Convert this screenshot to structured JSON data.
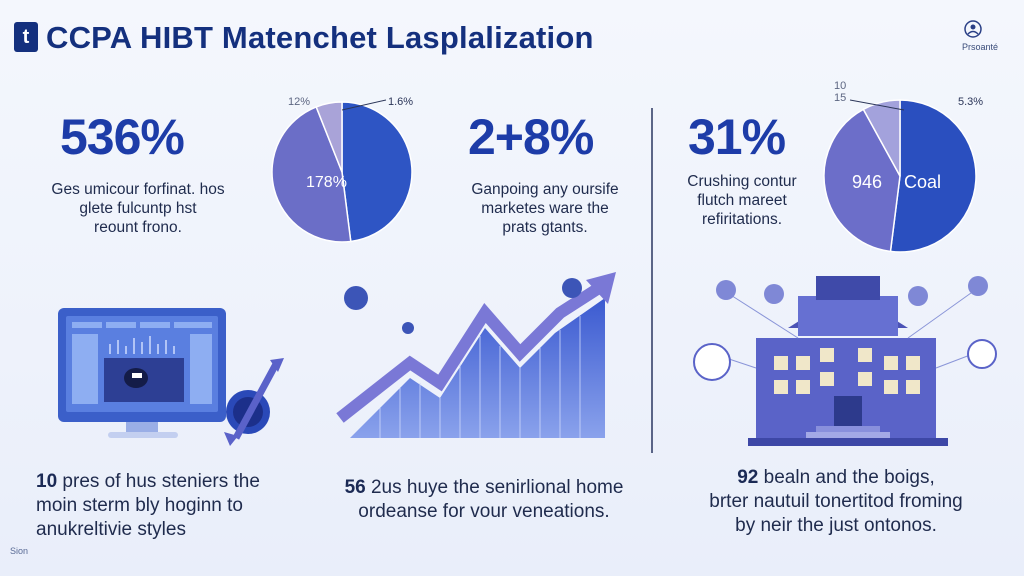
{
  "header": {
    "title": "CCPA HIBT Matenchet Lasplalization",
    "logo_glyph": "t",
    "top_right_label": "Prsoanté"
  },
  "stats": [
    {
      "value": "536%",
      "description": [
        "Ges umicour forfinat. hos",
        "glete fulcuntp hst",
        "reount frono."
      ]
    },
    {
      "value": "2+8%",
      "description": [
        "Ganpoing any oursife",
        "marketes ware the",
        "prats gtants."
      ]
    },
    {
      "value": "31%",
      "description": [
        "Crushing contur",
        "flutch mareet",
        "refiritations."
      ]
    }
  ],
  "pies": [
    {
      "outer_label": "12%",
      "corner_label": "1.6%",
      "inner_label": "178%",
      "slices": [
        {
          "fraction": 0.48,
          "color": "#2e55c4"
        },
        {
          "fraction": 0.46,
          "color": "#6b6ec7"
        },
        {
          "fraction": 0.06,
          "color": "#a9a3d8"
        }
      ]
    },
    {
      "outer_label": "10\n15",
      "corner_label": "5.3%",
      "inner_label": "946",
      "inner_label_2": "Coal",
      "slices": [
        {
          "fraction": 0.52,
          "color": "#2a4fbf"
        },
        {
          "fraction": 0.4,
          "color": "#6c6ec9"
        },
        {
          "fraction": 0.08,
          "color": "#a3a2dc"
        }
      ]
    }
  ],
  "bottom": [
    {
      "lead": "10",
      "lines": [
        "pres of hus steniers the",
        "moin sterm bly hoginn to",
        "anukreltivie styles"
      ]
    },
    {
      "lead": "56",
      "lines": [
        "2us huye the senirlional home",
        "ordeanse for vour veneations."
      ]
    },
    {
      "lead": "92",
      "lines": [
        "bealn and the boigs,",
        "brter nautuil tonertitod froming",
        "by neir the just ontonos."
      ]
    }
  ],
  "footer": {
    "left_label": "Sion"
  },
  "colors": {
    "primary": "#1d3ca8",
    "accent": "#6b6ec7",
    "dark": "#14307e"
  }
}
